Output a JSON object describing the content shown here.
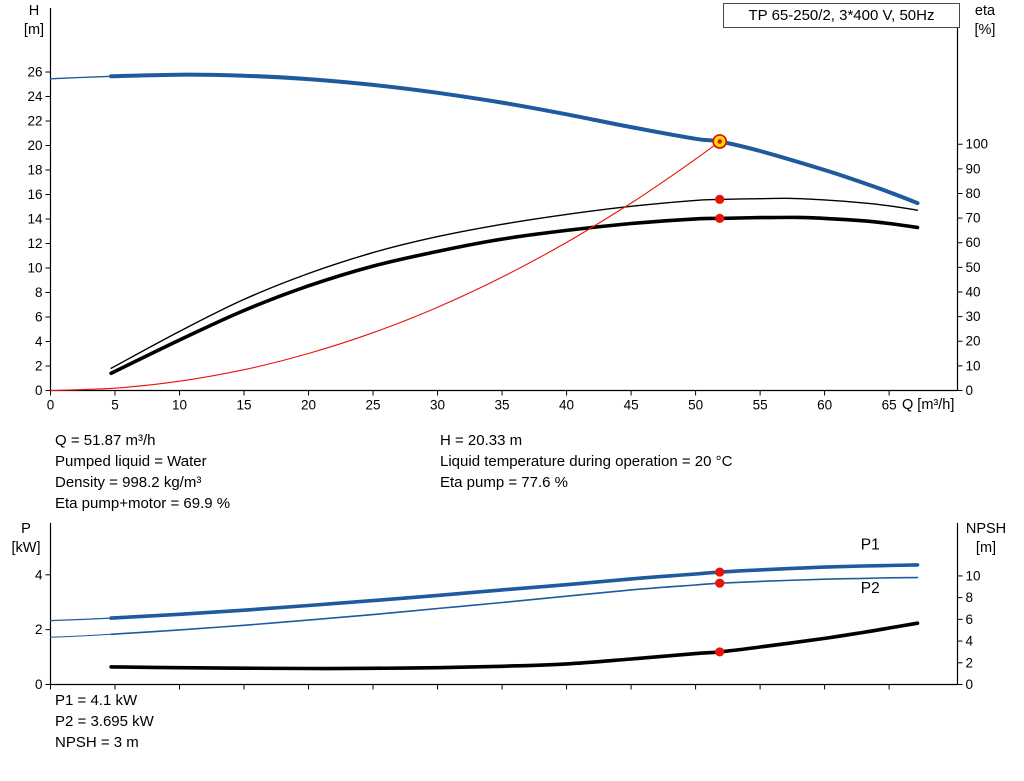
{
  "header": {
    "title": "TP 65-250/2, 3*400 V, 50Hz"
  },
  "operating_point_text": {
    "left": [
      "Q = 51.87 m³/h",
      "Pumped liquid = Water",
      "Density = 998.2 kg/m³",
      "Eta pump+motor = 69.9 %"
    ],
    "right": [
      "H = 20.33 m",
      "Liquid temperature during operation = 20 °C",
      "Eta pump = 77.6 %"
    ]
  },
  "power_text": [
    "P1 = 4.1 kW",
    "P2 = 3.695 kW",
    "NPSH = 3 m"
  ],
  "colors": {
    "curve_blue": "#1e5a9e",
    "curve_black": "#000000",
    "system_red": "#e81309",
    "duty_yellow": "#ffe400"
  },
  "duty_point": {
    "q_m3h": 51.87,
    "h_m": 20.33,
    "eta_pump_pct": 77.6,
    "eta_pump_motor_pct": 69.9,
    "p1_kw": 4.1,
    "p2_kw": 3.695,
    "npsh_m": 3
  },
  "chart_data": [
    {
      "type": "line",
      "title": "TP 65-250/2, 3*400 V, 50Hz — QH and efficiency curves",
      "x_axis": {
        "label": "Q [m³/h]",
        "min": 0,
        "max": 70.3,
        "ticks": [
          0,
          5,
          10,
          15,
          20,
          25,
          30,
          35,
          40,
          45,
          50,
          55,
          60,
          65
        ],
        "show_labels": true
      },
      "y_left": {
        "label": "H",
        "unit": "[m]",
        "min": 0,
        "max": 30.9,
        "ticks": [
          0,
          2,
          4,
          6,
          8,
          10,
          12,
          14,
          16,
          18,
          20,
          22,
          24,
          26
        ]
      },
      "y_right": {
        "label": "eta",
        "unit": "[%]",
        "min": 0,
        "max": 153.7,
        "ticks": [
          0,
          10,
          20,
          30,
          40,
          50,
          60,
          70,
          80,
          90,
          100
        ]
      },
      "grid": false,
      "series": [
        {
          "name": "head-curve-low-flow",
          "axis": "left",
          "color": "#1e5a9e",
          "width": 1.3,
          "points": [
            [
              0,
              25.45
            ],
            [
              2.3,
              25.55
            ],
            [
              4.7,
              25.65
            ]
          ]
        },
        {
          "name": "head-curve",
          "axis": "left",
          "color": "#1e5a9e",
          "width": 4,
          "points": [
            [
              4.7,
              25.65
            ],
            [
              10,
              25.78
            ],
            [
              15,
              25.7
            ],
            [
              20,
              25.42
            ],
            [
              25,
              24.95
            ],
            [
              30,
              24.3
            ],
            [
              35,
              23.5
            ],
            [
              40,
              22.55
            ],
            [
              45,
              21.5
            ],
            [
              50,
              20.55
            ],
            [
              51.87,
              20.33
            ],
            [
              55,
              19.55
            ],
            [
              60,
              18.0
            ],
            [
              63,
              16.95
            ],
            [
              65,
              16.2
            ],
            [
              67.2,
              15.3
            ]
          ]
        },
        {
          "name": "efficiency-pump-curve",
          "axis": "right",
          "color": "#000000",
          "width": 1.4,
          "points": [
            [
              4.7,
              9
            ],
            [
              10,
              24
            ],
            [
              15,
              37
            ],
            [
              20,
              47.5
            ],
            [
              25,
              56
            ],
            [
              30,
              62.5
            ],
            [
              35,
              67.5
            ],
            [
              40,
              71.5
            ],
            [
              45,
              74.8
            ],
            [
              50,
              77.2
            ],
            [
              51.87,
              77.6
            ],
            [
              55,
              77.9
            ],
            [
              57.5,
              78
            ],
            [
              60,
              77.4
            ],
            [
              63,
              76.2
            ],
            [
              65,
              75
            ],
            [
              67.2,
              73.2
            ]
          ]
        },
        {
          "name": "efficiency-pump-motor-curve",
          "axis": "right",
          "color": "#000000",
          "width": 3.6,
          "points": [
            [
              4.7,
              7
            ],
            [
              10,
              20.5
            ],
            [
              15,
              32.5
            ],
            [
              20,
              42.5
            ],
            [
              25,
              50.5
            ],
            [
              30,
              56.5
            ],
            [
              35,
              61.5
            ],
            [
              40,
              65
            ],
            [
              45,
              67.8
            ],
            [
              50,
              69.7
            ],
            [
              51.87,
              69.9
            ],
            [
              55,
              70.2
            ],
            [
              58,
              70.3
            ],
            [
              60,
              69.9
            ],
            [
              63,
              68.9
            ],
            [
              65,
              67.8
            ],
            [
              67.2,
              66.2
            ]
          ]
        },
        {
          "name": "system-curve",
          "axis": "left",
          "color": "#e81309",
          "width": 1.1,
          "points": [
            [
              0,
              0
            ],
            [
              5,
              0.19
            ],
            [
              10,
              0.76
            ],
            [
              15,
              1.7
            ],
            [
              20,
              3.02
            ],
            [
              25,
              4.72
            ],
            [
              30,
              6.8
            ],
            [
              35,
              9.26
            ],
            [
              40,
              12.09
            ],
            [
              45,
              15.3
            ],
            [
              48,
              17.41
            ],
            [
              50,
              18.89
            ],
            [
              51.87,
              20.33
            ]
          ]
        }
      ],
      "markers": [
        {
          "style": "duty",
          "name": "duty-point-marker",
          "x": 51.87,
          "y": 20.33,
          "axis": "left",
          "fill": "#ffe400",
          "stroke": "#e81309"
        },
        {
          "style": "dot",
          "name": "eta-pump-point",
          "x": 51.87,
          "y": 77.6,
          "axis": "right",
          "color": "#e81309"
        },
        {
          "style": "dot",
          "name": "eta-pump-motor-point",
          "x": 51.87,
          "y": 69.9,
          "axis": "right",
          "color": "#e81309"
        }
      ],
      "annotations": []
    },
    {
      "type": "line",
      "title": "Power and NPSH curves",
      "x_axis": {
        "label": "",
        "min": 0,
        "max": 70.3,
        "ticks": [
          0,
          5,
          10,
          15,
          20,
          25,
          30,
          35,
          40,
          45,
          50,
          55,
          60,
          65
        ],
        "show_labels": false
      },
      "y_left": {
        "label": "P",
        "unit": "[kW]",
        "min": 0,
        "max": 5.78,
        "ticks": [
          0,
          2,
          4
        ]
      },
      "y_right": {
        "label": "NPSH",
        "unit": "[m]",
        "min": 0,
        "max": 14.6,
        "ticks": [
          0,
          2,
          4,
          6,
          8,
          10
        ]
      },
      "grid": false,
      "series": [
        {
          "name": "p1-curve-low-flow",
          "axis": "left",
          "color": "#1e5a9e",
          "width": 1.2,
          "points": [
            [
              0,
              2.33
            ],
            [
              2.3,
              2.37
            ],
            [
              4.7,
              2.42
            ]
          ]
        },
        {
          "name": "p1-curve",
          "axis": "left",
          "color": "#1e5a9e",
          "width": 3.6,
          "points": [
            [
              4.7,
              2.42
            ],
            [
              10,
              2.56
            ],
            [
              15,
              2.71
            ],
            [
              20,
              2.88
            ],
            [
              25,
              3.06
            ],
            [
              30,
              3.25
            ],
            [
              35,
              3.45
            ],
            [
              40,
              3.64
            ],
            [
              45,
              3.85
            ],
            [
              50,
              4.03
            ],
            [
              51.87,
              4.1
            ],
            [
              55,
              4.18
            ],
            [
              60,
              4.28
            ],
            [
              63,
              4.32
            ],
            [
              65,
              4.34
            ],
            [
              67.2,
              4.36
            ]
          ]
        },
        {
          "name": "p2-curve-low-flow",
          "axis": "left",
          "color": "#1e5a9e",
          "width": 1,
          "points": [
            [
              0,
              1.72
            ],
            [
              2.3,
              1.77
            ],
            [
              4.7,
              1.83
            ]
          ]
        },
        {
          "name": "p2-curve",
          "axis": "left",
          "color": "#1e5a9e",
          "width": 1.6,
          "points": [
            [
              4.7,
              1.83
            ],
            [
              10,
              1.99
            ],
            [
              15,
              2.16
            ],
            [
              20,
              2.35
            ],
            [
              25,
              2.55
            ],
            [
              30,
              2.77
            ],
            [
              35,
              2.99
            ],
            [
              40,
              3.22
            ],
            [
              45,
              3.45
            ],
            [
              50,
              3.63
            ],
            [
              51.87,
              3.695
            ],
            [
              55,
              3.76
            ],
            [
              60,
              3.84
            ],
            [
              63,
              3.87
            ],
            [
              65,
              3.89
            ],
            [
              67.2,
              3.9
            ]
          ]
        },
        {
          "name": "npsh-curve",
          "axis": "right",
          "color": "#000000",
          "width": 3.6,
          "points": [
            [
              4.7,
              1.62
            ],
            [
              10,
              1.55
            ],
            [
              15,
              1.5
            ],
            [
              20,
              1.47
            ],
            [
              25,
              1.49
            ],
            [
              30,
              1.55
            ],
            [
              35,
              1.68
            ],
            [
              40,
              1.9
            ],
            [
              45,
              2.35
            ],
            [
              50,
              2.85
            ],
            [
              51.87,
              3.0
            ],
            [
              55,
              3.45
            ],
            [
              60,
              4.25
            ],
            [
              63,
              4.8
            ],
            [
              65,
              5.2
            ],
            [
              67.2,
              5.65
            ]
          ]
        }
      ],
      "markers": [
        {
          "style": "dot",
          "name": "p1-point",
          "x": 51.87,
          "y": 4.1,
          "axis": "left",
          "color": "#e81309"
        },
        {
          "style": "dot",
          "name": "p2-point",
          "x": 51.87,
          "y": 3.695,
          "axis": "left",
          "color": "#e81309"
        },
        {
          "style": "dot",
          "name": "npsh-point",
          "x": 51.87,
          "y": 3.0,
          "axis": "right",
          "color": "#e81309"
        }
      ],
      "annotations": [
        {
          "text": "P1",
          "name": "p1-curve-label",
          "x": 62.8,
          "y": 4.93,
          "axis": "left",
          "color": "#1e5a9e"
        },
        {
          "text": "P2",
          "name": "p2-curve-label",
          "x": 62.8,
          "y": 3.33,
          "axis": "left",
          "color": "#1e5a9e"
        }
      ]
    }
  ]
}
